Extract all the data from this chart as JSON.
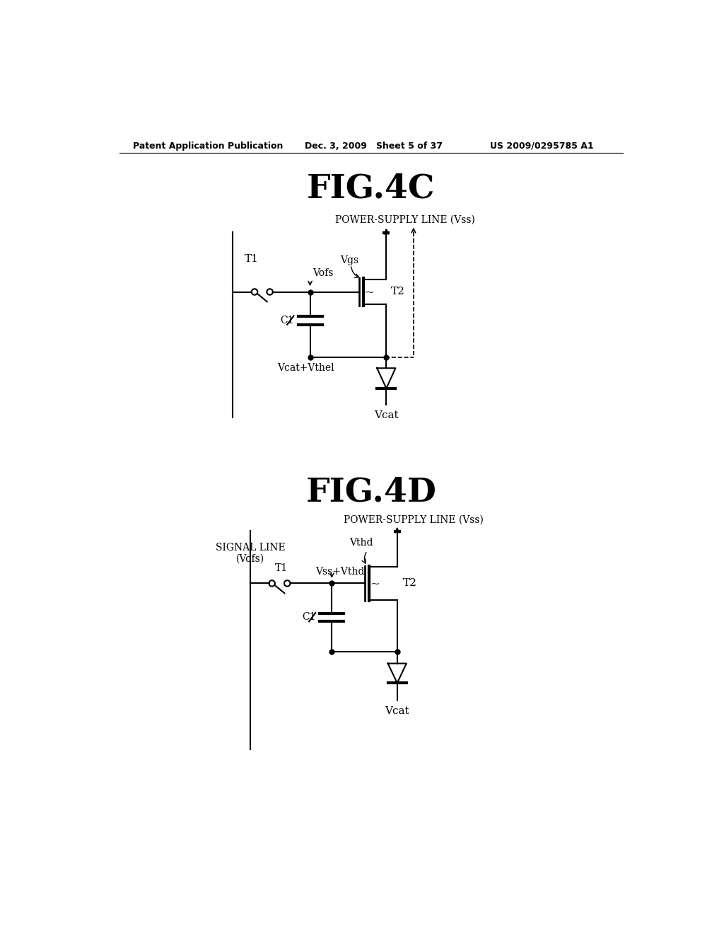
{
  "bg_color": "#ffffff",
  "header_left": "Patent Application Publication",
  "header_mid": "Dec. 3, 2009   Sheet 5 of 37",
  "header_right": "US 2009/0295785 A1",
  "fig4c_title": "FIG.4C",
  "fig4d_title": "FIG.4D",
  "fig4c_power_label": "POWER-SUPPLY LINE (Vss)",
  "fig4d_power_label": "POWER-SUPPLY LINE (Vss)",
  "fig4d_signal_label1": "SIGNAL LINE",
  "fig4d_signal_label2": "(Vofs)"
}
